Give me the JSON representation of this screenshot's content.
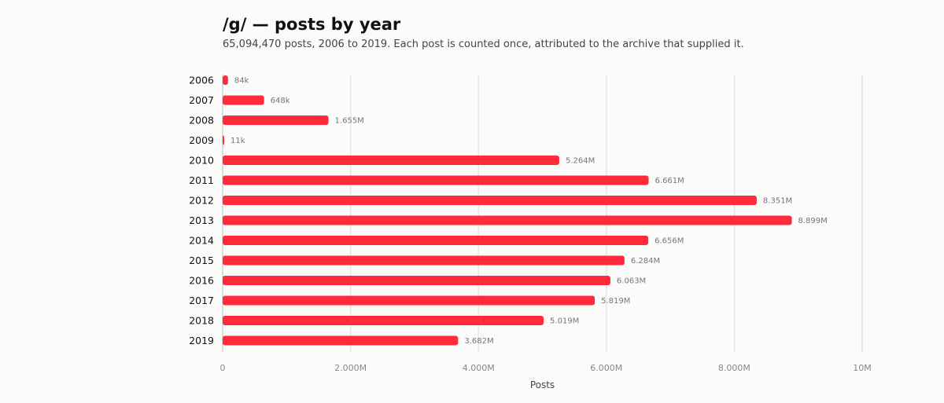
{
  "chart_data": {
    "type": "bar",
    "orientation": "horizontal",
    "title": "/g/ — posts by year",
    "subtitle": "65,094,470 posts, 2006 to 2019. Each post is counted once, attributed to the archive that supplied it.",
    "xlabel": "Posts",
    "ylabel": "",
    "xlim": [
      0,
      10000000
    ],
    "xticks": [
      {
        "value": 0,
        "label": "0"
      },
      {
        "value": 2000000,
        "label": "2.000M"
      },
      {
        "value": 4000000,
        "label": "4.000M"
      },
      {
        "value": 6000000,
        "label": "6.000M"
      },
      {
        "value": 8000000,
        "label": "8.000M"
      },
      {
        "value": 10000000,
        "label": "10M"
      }
    ],
    "grid": "vertical",
    "bar_color": "#ff2a3a",
    "categories": [
      "2006",
      "2007",
      "2008",
      "2009",
      "2010",
      "2011",
      "2012",
      "2013",
      "2014",
      "2015",
      "2016",
      "2017",
      "2018",
      "2019"
    ],
    "values": [
      84000,
      648000,
      1655000,
      11000,
      5264000,
      6661000,
      8351000,
      8899000,
      6656000,
      6284000,
      6063000,
      5819000,
      5019000,
      3682000
    ],
    "value_labels": [
      "84k",
      "648k",
      "1.655M",
      "11k",
      "5.264M",
      "6.661M",
      "8.351M",
      "8.899M",
      "6.656M",
      "6.284M",
      "6.063M",
      "5.819M",
      "5.019M",
      "3.682M"
    ]
  }
}
